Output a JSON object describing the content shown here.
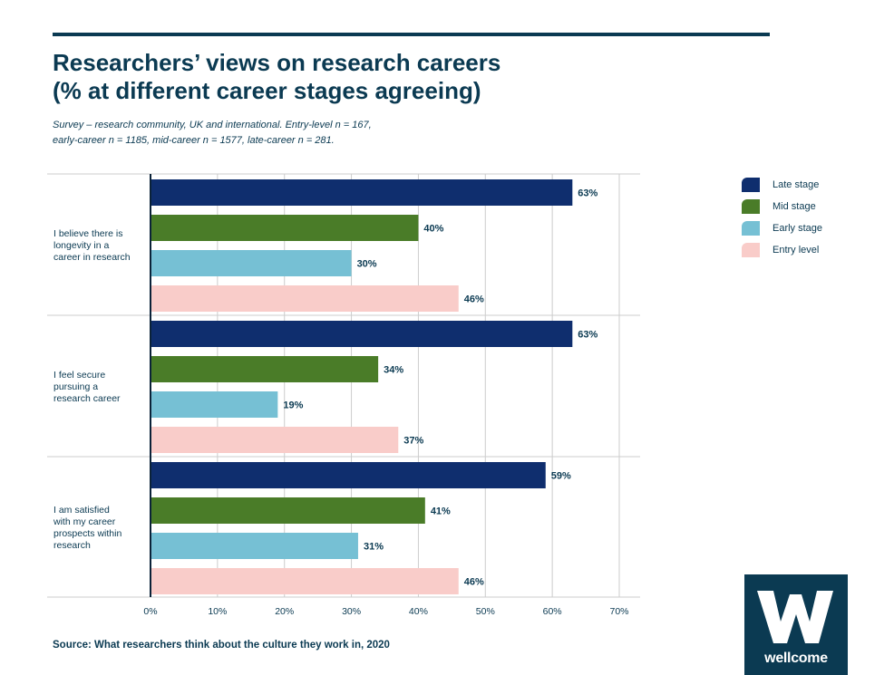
{
  "header": {
    "title_line1": "Researchers’ views on research careers",
    "title_line2": "(% at different career stages agreeing)",
    "subtitle_line1": "Survey – research community, UK and international. Entry-level n = 167,",
    "subtitle_line2": "early-career n = 1185, mid-career n = 1577, late-career n = 281."
  },
  "source": "Source: What researchers think about the culture they work in, 2020",
  "logo": {
    "word": "wellcome",
    "letter": "W"
  },
  "colors": {
    "late": "#0f2e6e",
    "mid": "#4a7c28",
    "early": "#76c0d4",
    "entry": "#f9ccc9",
    "text": "#0b3a52",
    "grid": "#cccccc"
  },
  "chart_data": {
    "type": "bar",
    "orientation": "horizontal",
    "title": "Researchers’ views on research careers (% at different career stages agreeing)",
    "categories": [
      [
        "I believe there is",
        "longevity in a",
        "career in research"
      ],
      [
        "I feel secure",
        "pursuing a",
        "research career"
      ],
      [
        "I am satisfied",
        "with my career",
        "prospects within",
        "research"
      ]
    ],
    "series": [
      {
        "name": "Late stage",
        "key": "late",
        "values": [
          63,
          63,
          59
        ]
      },
      {
        "name": "Mid stage",
        "key": "mid",
        "values": [
          40,
          34,
          41
        ]
      },
      {
        "name": "Early stage",
        "key": "early",
        "values": [
          30,
          19,
          31
        ]
      },
      {
        "name": "Entry level",
        "key": "entry",
        "values": [
          46,
          37,
          46
        ]
      }
    ],
    "value_suffix": "%",
    "xlim": [
      0,
      70
    ],
    "xticks": [
      0,
      10,
      20,
      30,
      40,
      50,
      60,
      70
    ],
    "xtick_labels": [
      "0%",
      "10%",
      "20%",
      "30%",
      "40%",
      "50%",
      "60%",
      "70%"
    ],
    "grid": true,
    "legend_position": "top-right"
  }
}
